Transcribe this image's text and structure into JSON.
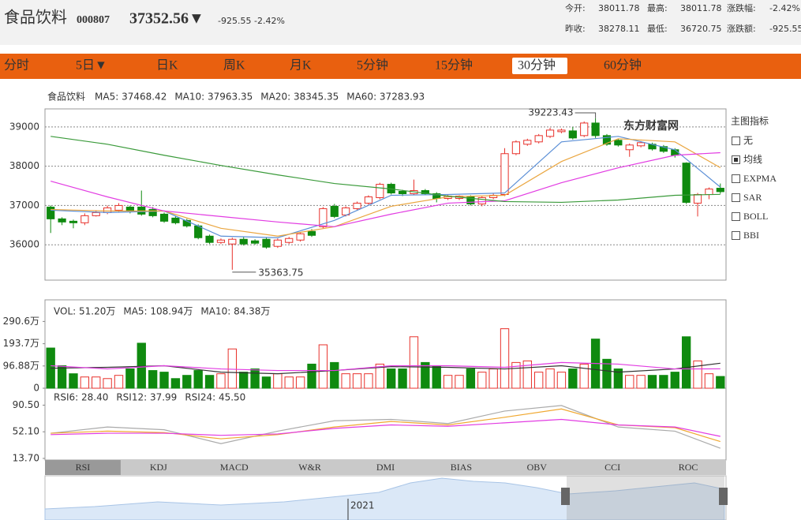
{
  "header": {
    "name": "食品饮料",
    "code": "000807",
    "price": "37352.56▼",
    "change": "-925.55",
    "percent": "-2.42%",
    "color": "#1a8a1a",
    "stats": [
      {
        "label": "今开:",
        "value": "38011.78",
        "color": "#333"
      },
      {
        "label": "最高:",
        "value": "38011.78",
        "color": "#1a8a1a"
      },
      {
        "label": "涨跌幅:",
        "value": "-2.42%",
        "color": "#1a8a1a"
      },
      {
        "label": "昨收:",
        "value": "38278.11",
        "color": "#333"
      },
      {
        "label": "最低:",
        "value": "36720.75",
        "color": "#1a8a1a"
      },
      {
        "label": "涨跌额:",
        "value": "-925.55",
        "color": "#1a8a1a"
      }
    ]
  },
  "tabs": {
    "items": [
      "分时",
      "5日▼",
      "日K",
      "周K",
      "月K",
      "5分钟",
      "15分钟",
      "30分钟",
      "60分钟"
    ],
    "selected": 7
  },
  "indicators": {
    "title": "主图指标",
    "options": [
      "无",
      "均线",
      "EXPMA",
      "SAR",
      "BOLL",
      "BBI"
    ],
    "selected": 1
  },
  "watermark": "东方财富网",
  "bottom_tabs": {
    "items": [
      "RSI",
      "KDJ",
      "MACD",
      "W&R",
      "DMI",
      "BIAS",
      "OBV",
      "CCI",
      "ROC"
    ],
    "selected": 0
  },
  "navigator": {
    "label": "2021"
  },
  "chart_data": [
    {
      "type": "candlestick",
      "legend_title": "食品饮料",
      "ylim": [
        35100,
        39460
      ],
      "yticks": [
        36000,
        37000,
        38000,
        39000
      ],
      "grid": true,
      "up_color": "#e8322c",
      "down_color": "#0f8a0f",
      "ohlc": [
        [
          36960,
          37000,
          36300,
          36660
        ],
        [
          36660,
          36700,
          36500,
          36580
        ],
        [
          36600,
          36640,
          36420,
          36560
        ],
        [
          36560,
          36800,
          36500,
          36740
        ],
        [
          36740,
          36880,
          36720,
          36820
        ],
        [
          36820,
          37000,
          36780,
          36940
        ],
        [
          36880,
          37060,
          36840,
          37000
        ],
        [
          36960,
          37000,
          36800,
          36860
        ],
        [
          36960,
          37380,
          36740,
          36780
        ],
        [
          36900,
          36960,
          36700,
          36740
        ],
        [
          36780,
          36820,
          36560,
          36600
        ],
        [
          36680,
          36720,
          36520,
          36560
        ],
        [
          36620,
          36660,
          36440,
          36480
        ],
        [
          36480,
          36520,
          36140,
          36180
        ],
        [
          36220,
          36260,
          36020,
          36060
        ],
        [
          36060,
          36160,
          36020,
          36120
        ],
        [
          36020,
          36180,
          35363.75,
          36140
        ],
        [
          36140,
          36200,
          35980,
          36020
        ],
        [
          36100,
          36140,
          36000,
          36040
        ],
        [
          36140,
          36180,
          35900,
          35940
        ],
        [
          35960,
          36160,
          35920,
          36120
        ],
        [
          36060,
          36200,
          36020,
          36160
        ],
        [
          36120,
          36320,
          36080,
          36280
        ],
        [
          36340,
          36400,
          36200,
          36240
        ],
        [
          36460,
          36960,
          36420,
          36920
        ],
        [
          36980,
          37040,
          36680,
          36720
        ],
        [
          36760,
          36980,
          36720,
          36940
        ],
        [
          36920,
          37100,
          36880,
          37060
        ],
        [
          37060,
          37260,
          37020,
          37220
        ],
        [
          37200,
          37580,
          37160,
          37540
        ],
        [
          37540,
          37580,
          37280,
          37320
        ],
        [
          37360,
          37400,
          37240,
          37300
        ],
        [
          37300,
          37660,
          37260,
          37380
        ],
        [
          37380,
          37420,
          37260,
          37300
        ],
        [
          37300,
          37340,
          37080,
          37180
        ],
        [
          37180,
          37280,
          37140,
          37240
        ],
        [
          37180,
          37260,
          37140,
          37240
        ],
        [
          37220,
          37260,
          37000,
          37040
        ],
        [
          37040,
          37240,
          36980,
          37200
        ],
        [
          37200,
          37300,
          37160,
          37260
        ],
        [
          37280,
          38460,
          37240,
          38320
        ],
        [
          38320,
          38660,
          38280,
          38620
        ],
        [
          38560,
          38700,
          38520,
          38660
        ],
        [
          38620,
          38820,
          38580,
          38780
        ],
        [
          38760,
          38980,
          38720,
          38920
        ],
        [
          38880,
          38960,
          38840,
          38920
        ],
        [
          38900,
          39000,
          38680,
          38720
        ],
        [
          38780,
          39140,
          38740,
          39100
        ],
        [
          39100,
          39223.43,
          38720,
          38780
        ],
        [
          38780,
          38820,
          38520,
          38560
        ],
        [
          38660,
          38700,
          38500,
          38540
        ],
        [
          38420,
          38580,
          38240,
          38540
        ],
        [
          38520,
          38640,
          38480,
          38600
        ],
        [
          38560,
          38600,
          38400,
          38440
        ],
        [
          38500,
          38540,
          38340,
          38380
        ],
        [
          38420,
          38460,
          38220,
          38280
        ],
        [
          38080,
          38100,
          37040,
          37080
        ],
        [
          37060,
          37320,
          36720.75,
          37280
        ],
        [
          37280,
          37460,
          37160,
          37420
        ],
        [
          37440,
          37560,
          37300,
          37352.56
        ]
      ],
      "series": [
        {
          "name": "MA5: 37468.42",
          "color": "#5b8fd6",
          "x": [
            0,
            5,
            10,
            15,
            20,
            25,
            30,
            35,
            40,
            45,
            50,
            55,
            59
          ],
          "values": [
            36880,
            36820,
            36860,
            36220,
            36180,
            36620,
            37260,
            37280,
            37320,
            38620,
            38760,
            38420,
            37468.42
          ]
        },
        {
          "name": "MA10: 37963.35",
          "color": "#eaa640",
          "x": [
            0,
            5,
            10,
            15,
            20,
            25,
            30,
            35,
            40,
            45,
            50,
            55,
            59
          ],
          "values": [
            36900,
            36860,
            36860,
            36420,
            36220,
            36460,
            36980,
            37220,
            37260,
            38120,
            38700,
            38620,
            37963.35
          ]
        },
        {
          "name": "MA20: 38345.35",
          "color": "#e23ce2",
          "x": [
            0,
            5,
            10,
            15,
            20,
            25,
            30,
            35,
            40,
            45,
            50,
            55,
            59
          ],
          "values": [
            37620,
            37220,
            36860,
            36720,
            36580,
            36460,
            36780,
            37060,
            37120,
            37580,
            37960,
            38280,
            38345.35
          ]
        },
        {
          "name": "MA60: 37283.93",
          "color": "#3a9a3a",
          "x": [
            0,
            5,
            10,
            15,
            20,
            25,
            30,
            35,
            40,
            45,
            50,
            55,
            59
          ],
          "values": [
            38760,
            38560,
            38280,
            38020,
            37780,
            37560,
            37420,
            37240,
            37100,
            37080,
            37140,
            37260,
            37283.93
          ]
        }
      ]
    },
    {
      "type": "bar",
      "ylim": [
        0,
        384.7
      ],
      "yticks": [
        {
          "value": 290.6,
          "label": "290.6万"
        },
        {
          "value": 193.7,
          "label": "193.7万"
        },
        {
          "value": 96.88,
          "label": "96.88万"
        },
        0
      ],
      "grid": false,
      "series": [
        {
          "name": "VOL: 51.20万",
          "color": "#f050f0",
          "values": [
            175,
            98,
            63,
            49,
            49,
            42,
            56,
            84,
            196,
            77,
            70,
            42,
            56,
            77,
            56,
            63,
            171,
            70,
            84,
            49,
            63,
            49,
            49,
            105,
            189,
            112,
            63,
            63,
            63,
            105,
            84,
            84,
            224,
            112,
            98,
            56,
            56,
            84,
            70,
            84,
            259,
            112,
            119,
            70,
            84,
            70,
            84,
            105,
            214,
            126,
            84,
            56,
            56,
            56,
            56,
            70,
            224,
            119,
            63,
            51.2
          ]
        },
        {
          "name": "MA5: 108.94万",
          "color": "#333333",
          "x": [
            0,
            5,
            10,
            15,
            20,
            25,
            30,
            35,
            40,
            45,
            50,
            55,
            59
          ],
          "values": [
            87,
            91,
            98,
            70,
            63,
            77,
            94,
            91,
            84,
            98,
            70,
            84,
            108.94
          ]
        },
        {
          "name": "MA10: 84.38万",
          "color": "#e23ce2",
          "x": [
            0,
            5,
            10,
            15,
            20,
            25,
            30,
            35,
            40,
            45,
            50,
            55,
            59
          ],
          "values": [
            98,
            84,
            98,
            84,
            77,
            77,
            98,
            98,
            91,
            112,
            105,
            84,
            84.38
          ]
        }
      ]
    },
    {
      "type": "line",
      "ylim": [
        11.37,
        114.9
      ],
      "yticks": [
        {
          "value": 90.5,
          "label": "90.50"
        },
        {
          "value": 52.1,
          "label": "52.10"
        },
        {
          "value": 13.7,
          "label": "13.70"
        }
      ],
      "grid": false,
      "series": [
        {
          "name": "RSI6: 28.40",
          "color": "#aaaaaa",
          "x": [
            0,
            5,
            10,
            15,
            20,
            25,
            30,
            35,
            40,
            45,
            50,
            55,
            59
          ],
          "values": [
            50,
            59,
            55,
            35,
            53,
            68,
            70,
            64,
            82,
            90,
            59,
            53,
            28.4
          ]
        },
        {
          "name": "RSI12: 37.99",
          "color": "#f0a830",
          "x": [
            0,
            5,
            10,
            15,
            20,
            25,
            30,
            35,
            40,
            45,
            50,
            55,
            59
          ],
          "values": [
            50,
            53,
            51,
            42,
            48,
            59,
            67,
            62,
            73,
            85,
            62,
            58,
            37.99
          ]
        },
        {
          "name": "RSI24: 45.50",
          "color": "#e23ce2",
          "x": [
            0,
            5,
            10,
            15,
            20,
            25,
            30,
            35,
            40,
            45,
            50,
            55,
            59
          ],
          "values": [
            48,
            50,
            50,
            47,
            49,
            57,
            62,
            60,
            65,
            70,
            62,
            59,
            45.5
          ]
        }
      ]
    }
  ]
}
